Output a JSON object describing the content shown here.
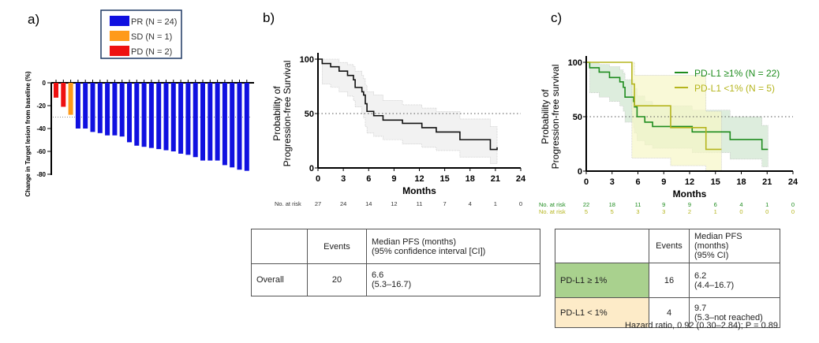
{
  "chart_data": [
    {
      "panel": "a)",
      "type": "bar",
      "ylabel": "Change in Target lesion from baseline (%)",
      "ylim": [
        -80,
        0
      ],
      "yticks": [
        0,
        -20,
        -40,
        -60,
        -80
      ],
      "reference_line": -30,
      "legend": [
        {
          "label": "PR (N = 24)",
          "color": "#1010e0"
        },
        {
          "label": "SD (N = 1)",
          "color": "#ff9a1a"
        },
        {
          "label": "PD (N = 2)",
          "color": "#ee1111"
        }
      ],
      "values": [
        -13,
        -21,
        -28,
        -40,
        -40,
        -43,
        -44,
        -46,
        -46,
        -47,
        -52,
        -55,
        -56,
        -57,
        -58,
        -59,
        -60,
        -62,
        -63,
        -65,
        -68,
        -68,
        -68,
        -72,
        -74,
        -76,
        -77
      ],
      "categories": [
        "PD",
        "PD",
        "SD",
        "PR",
        "PR",
        "PR",
        "PR",
        "PR",
        "PR",
        "PR",
        "PR",
        "PR",
        "PR",
        "PR",
        "PR",
        "PR",
        "PR",
        "PR",
        "PR",
        "PR",
        "PR",
        "PR",
        "PR",
        "PR",
        "PR",
        "PR",
        "PR"
      ]
    },
    {
      "panel": "b)",
      "type": "line",
      "xlabel": "Months",
      "ylabel": "Probability of Progression-free Survival",
      "xlim": [
        0,
        24
      ],
      "ylim": [
        0,
        100
      ],
      "xticks": [
        0,
        3,
        6,
        9,
        12,
        15,
        18,
        21,
        24
      ],
      "yticks": [
        0,
        50,
        100
      ],
      "reference_line": 50,
      "risk_label": "No. at risk",
      "risk": [
        27,
        24,
        14,
        12,
        11,
        7,
        4,
        1,
        0
      ],
      "series": [
        {
          "color": "#111111",
          "x": [
            0,
            0.5,
            1.5,
            2.5,
            3.5,
            4.2,
            4.4,
            5.2,
            5.4,
            5.6,
            5.8,
            6.6,
            7.7,
            10,
            12.3,
            14,
            16.8,
            20.4,
            21.2
          ],
          "y": [
            100,
            96,
            93,
            89,
            85,
            81,
            74,
            70,
            67,
            59,
            52,
            48,
            44,
            41,
            37,
            33,
            26,
            17,
            19
          ],
          "ci_upper": [
            100,
            100,
            100,
            97,
            95,
            93,
            89,
            85,
            82,
            76,
            70,
            67,
            62,
            58,
            55,
            52,
            45,
            38,
            38
          ],
          "ci_lower": [
            100,
            77,
            74,
            70,
            66,
            62,
            56,
            50,
            46,
            38,
            32,
            29,
            26,
            22,
            19,
            16,
            10,
            4,
            4
          ]
        }
      ]
    },
    {
      "panel": "c)",
      "type": "line",
      "xlabel": "Months",
      "ylabel": "Probability of Progression-free survival",
      "xlim": [
        0,
        24
      ],
      "ylim": [
        0,
        100
      ],
      "xticks": [
        0,
        3,
        6,
        9,
        12,
        15,
        18,
        21,
        24
      ],
      "yticks": [
        0,
        50,
        100
      ],
      "reference_line": 50,
      "series": [
        {
          "name": "PD-L1 ≥1% (N = 22)",
          "color": "#1e8c1e",
          "band": "#cfe6cf",
          "risk_label": "No. at risk",
          "risk": [
            22,
            18,
            11,
            9,
            9,
            6,
            4,
            1,
            0
          ],
          "x": [
            0,
            0.4,
            1.5,
            2.7,
            3.9,
            4.3,
            4.5,
            5.5,
            5.6,
            5.9,
            6.8,
            7.7,
            12.3,
            16.7,
            20.4,
            21.1
          ],
          "y": [
            100,
            95,
            91,
            86,
            82,
            77,
            68,
            64,
            59,
            50,
            45,
            41,
            36,
            29,
            20,
            20
          ],
          "ci_upper": [
            100,
            100,
            98,
            96,
            93,
            90,
            84,
            80,
            76,
            69,
            64,
            60,
            56,
            50,
            42,
            42
          ],
          "ci_lower": [
            100,
            72,
            68,
            64,
            60,
            55,
            45,
            40,
            35,
            28,
            24,
            21,
            17,
            11,
            4,
            4
          ]
        },
        {
          "name": "PD-L1 <1% (N = 5)",
          "color": "#b5b51e",
          "band": "#f6f6c6",
          "risk_label": "No. at risk",
          "risk": [
            5,
            5,
            3,
            3,
            2,
            1,
            0,
            0,
            0
          ],
          "x": [
            0,
            5.3,
            5.6,
            9.8,
            13.9,
            15.7
          ],
          "y": [
            100,
            80,
            60,
            40,
            20,
            20
          ],
          "ci_upper": [
            100,
            100,
            88,
            88,
            55,
            55
          ],
          "ci_lower": [
            100,
            12,
            12,
            5,
            0,
            0
          ]
        }
      ]
    }
  ],
  "table_b": {
    "headers": [
      "",
      "Events",
      "Median PFS (months)\n(95% confidence interval [CI])"
    ],
    "rows": [
      [
        "Overall",
        "20",
        "6.6\n(5.3–16.7)"
      ]
    ]
  },
  "table_c": {
    "headers": [
      "",
      "Events",
      "Median PFS (months)\n(95% CI)"
    ],
    "rows": [
      [
        "PD-L1 ≥ 1%",
        "16",
        "6.2\n(4.4–16.7)"
      ],
      [
        "PD-L1 < 1%",
        "4",
        "9.7\n(5.3–not reached)"
      ]
    ],
    "row_colors": [
      "#a9d18e",
      "#fdebc8"
    ]
  },
  "hazard_ratio": "Hazard ratio, 0.92 (0.30–2.84); P = 0.89"
}
